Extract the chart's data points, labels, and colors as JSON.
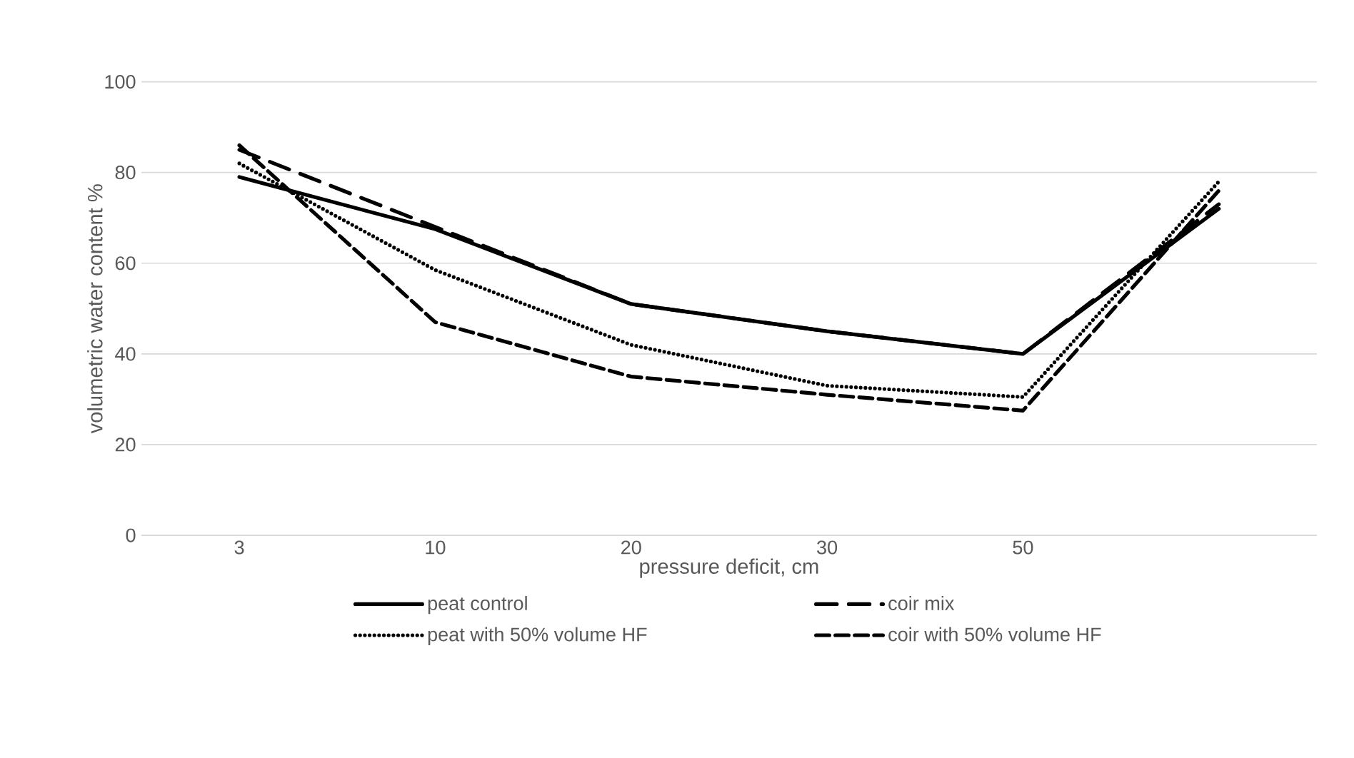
{
  "chart_data": {
    "type": "line",
    "xlabel": "pressure deficit, cm",
    "ylabel": "volumetric water content %",
    "categories": [
      "3",
      "10",
      "20",
      "30",
      "50",
      null
    ],
    "ylim": [
      0,
      100
    ],
    "yticks": [
      0,
      20,
      40,
      60,
      80,
      100
    ],
    "grid": "y",
    "legend": "bottom",
    "marker": "none",
    "series": [
      {
        "name": "peat control",
        "color": "#000000",
        "line_style": "solid",
        "values": [
          79,
          67.5,
          51,
          45,
          40,
          72
        ]
      },
      {
        "name": "coir mix",
        "color": "#000000",
        "line_style": "dashdot",
        "values": [
          85,
          68,
          51,
          45,
          40,
          73
        ]
      },
      {
        "name": "peat with 50% volume HF",
        "color": "#000000",
        "line_style": "dotted",
        "values": [
          82,
          58.5,
          42,
          33,
          30.5,
          78
        ]
      },
      {
        "name": "coir with 50% volume HF",
        "color": "#000000",
        "line_style": "dashed",
        "values": [
          86,
          47,
          35,
          31,
          27.5,
          76
        ]
      }
    ]
  }
}
